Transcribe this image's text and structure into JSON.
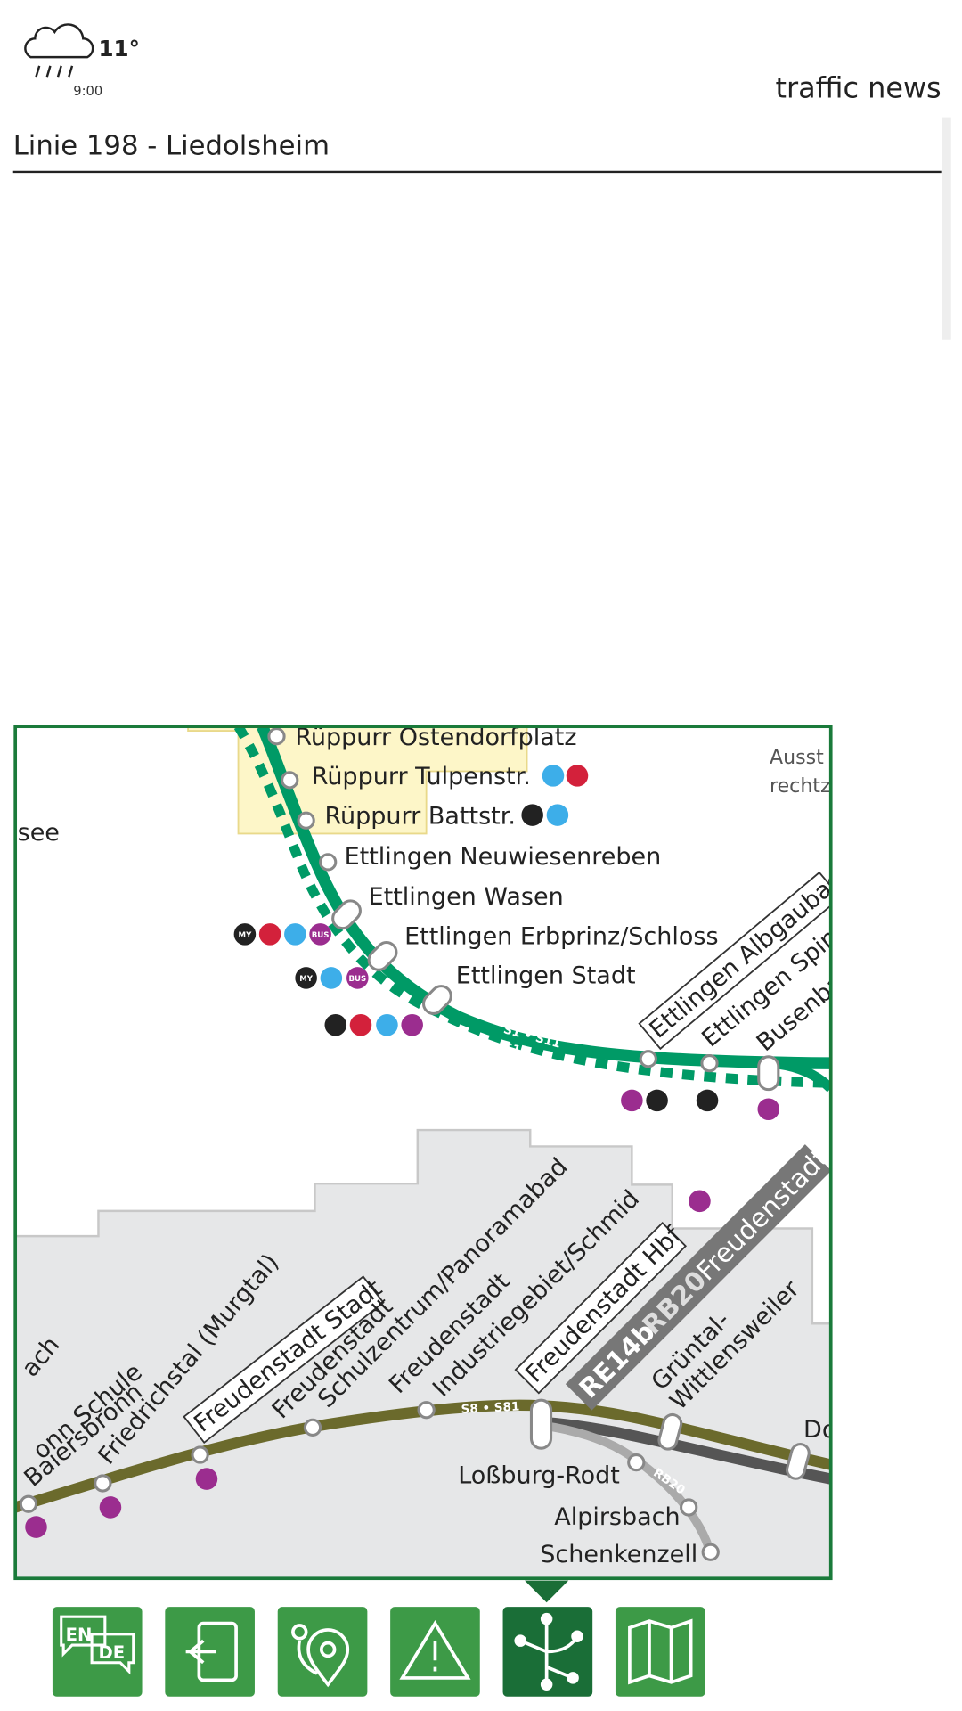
{
  "weather": {
    "temperature": "11°",
    "time": "9:00"
  },
  "header": {
    "title": "traffic news",
    "line": "Linie 198 - Liedolsheim"
  },
  "map": {
    "labels": [
      "Rüppurr Ostendorfplatz",
      "Rüppurr Tulpenstr.",
      "Rüppurr Battstr.",
      "Ettlingen Neuwiesenreben",
      "Ettlingen Wasen",
      "Ettlingen Erbprinz/Schloss",
      "Ettlingen Stadt",
      "Ettlingen Albgaubad",
      "Ettlingen Spinn",
      "Busenba",
      "see",
      "Ausst",
      "rechtz",
      "S1 • S11",
      "S12",
      "ach",
      "onn Schule",
      "Baiersbronn",
      "Friedrichstal (Murgtal)",
      "Freudenstadt Stadt",
      "Freudenstadt",
      "Schulzentrum/Panoramabad",
      "Freudenstadt",
      "Industriegebiet/Schmid",
      "Freudenstadt Hbf",
      "RE14b",
      "RB20",
      "Freudenstadt",
      "Grüntal-",
      "Wittlensweiler",
      "S8 • S81",
      "Do",
      "Loßburg-Rodt",
      "RB20",
      "Alpirsbach",
      "Schenkenzell"
    ],
    "badges": [
      "MY",
      "BUS"
    ]
  },
  "nav": {
    "language": [
      "EN",
      "DE"
    ]
  }
}
